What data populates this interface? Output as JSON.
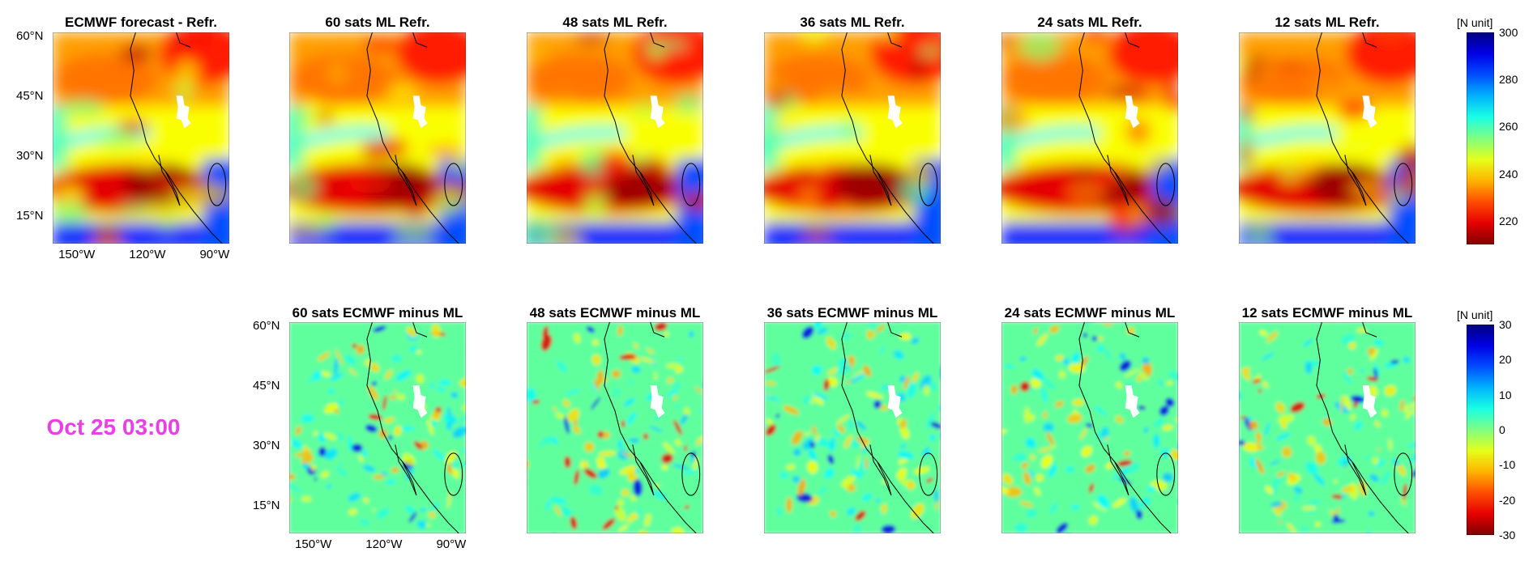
{
  "date_label": "Oct 25 03:00",
  "chart_data": [
    {
      "type": "heatmap",
      "row": "top",
      "panels": [
        {
          "title": "ECMWF forecast - Refr.",
          "axis_labels": true
        },
        {
          "title": "60 sats ML Refr."
        },
        {
          "title": "48 sats ML Refr."
        },
        {
          "title": "36 sats ML Refr."
        },
        {
          "title": "24 sats ML Refr."
        },
        {
          "title": "12 sats ML Refr."
        }
      ],
      "yticks": [
        "60°N",
        "45°N",
        "30°N",
        "15°N"
      ],
      "ytick_values": [
        60,
        45,
        30,
        15
      ],
      "xticks": [
        "150°W",
        "120°W",
        "90°W"
      ],
      "xtick_values": [
        -150,
        -120,
        -90
      ],
      "colorbar": {
        "unit_label": "[N unit]",
        "ticks": [
          "300",
          "280",
          "260",
          "240",
          "220"
        ],
        "tick_values": [
          300,
          280,
          260,
          240,
          220
        ],
        "range": [
          210,
          300
        ],
        "colormap": "jet_reversed_low"
      }
    },
    {
      "type": "heatmap",
      "row": "bottom",
      "panels": [
        {
          "title": "60 sats ECMWF minus ML",
          "axis_labels": true
        },
        {
          "title": "48 sats ECMWF minus ML"
        },
        {
          "title": "36 sats ECMWF minus ML"
        },
        {
          "title": "24 sats ECMWF minus ML"
        },
        {
          "title": "12 sats ECMWF minus ML"
        }
      ],
      "yticks": [
        "60°N",
        "45°N",
        "30°N",
        "15°N"
      ],
      "ytick_values": [
        60,
        45,
        30,
        15
      ],
      "xticks": [
        "150°W",
        "120°W",
        "90°W"
      ],
      "xtick_values": [
        -150,
        -120,
        -90
      ],
      "colorbar": {
        "unit_label": "[N unit]",
        "ticks": [
          "30",
          "20",
          "10",
          "0",
          "-10",
          "-20",
          "-30"
        ],
        "tick_values": [
          30,
          20,
          10,
          0,
          -10,
          -20,
          -30
        ],
        "range": [
          -30,
          30
        ],
        "colormap": "jet_reversed"
      }
    }
  ]
}
